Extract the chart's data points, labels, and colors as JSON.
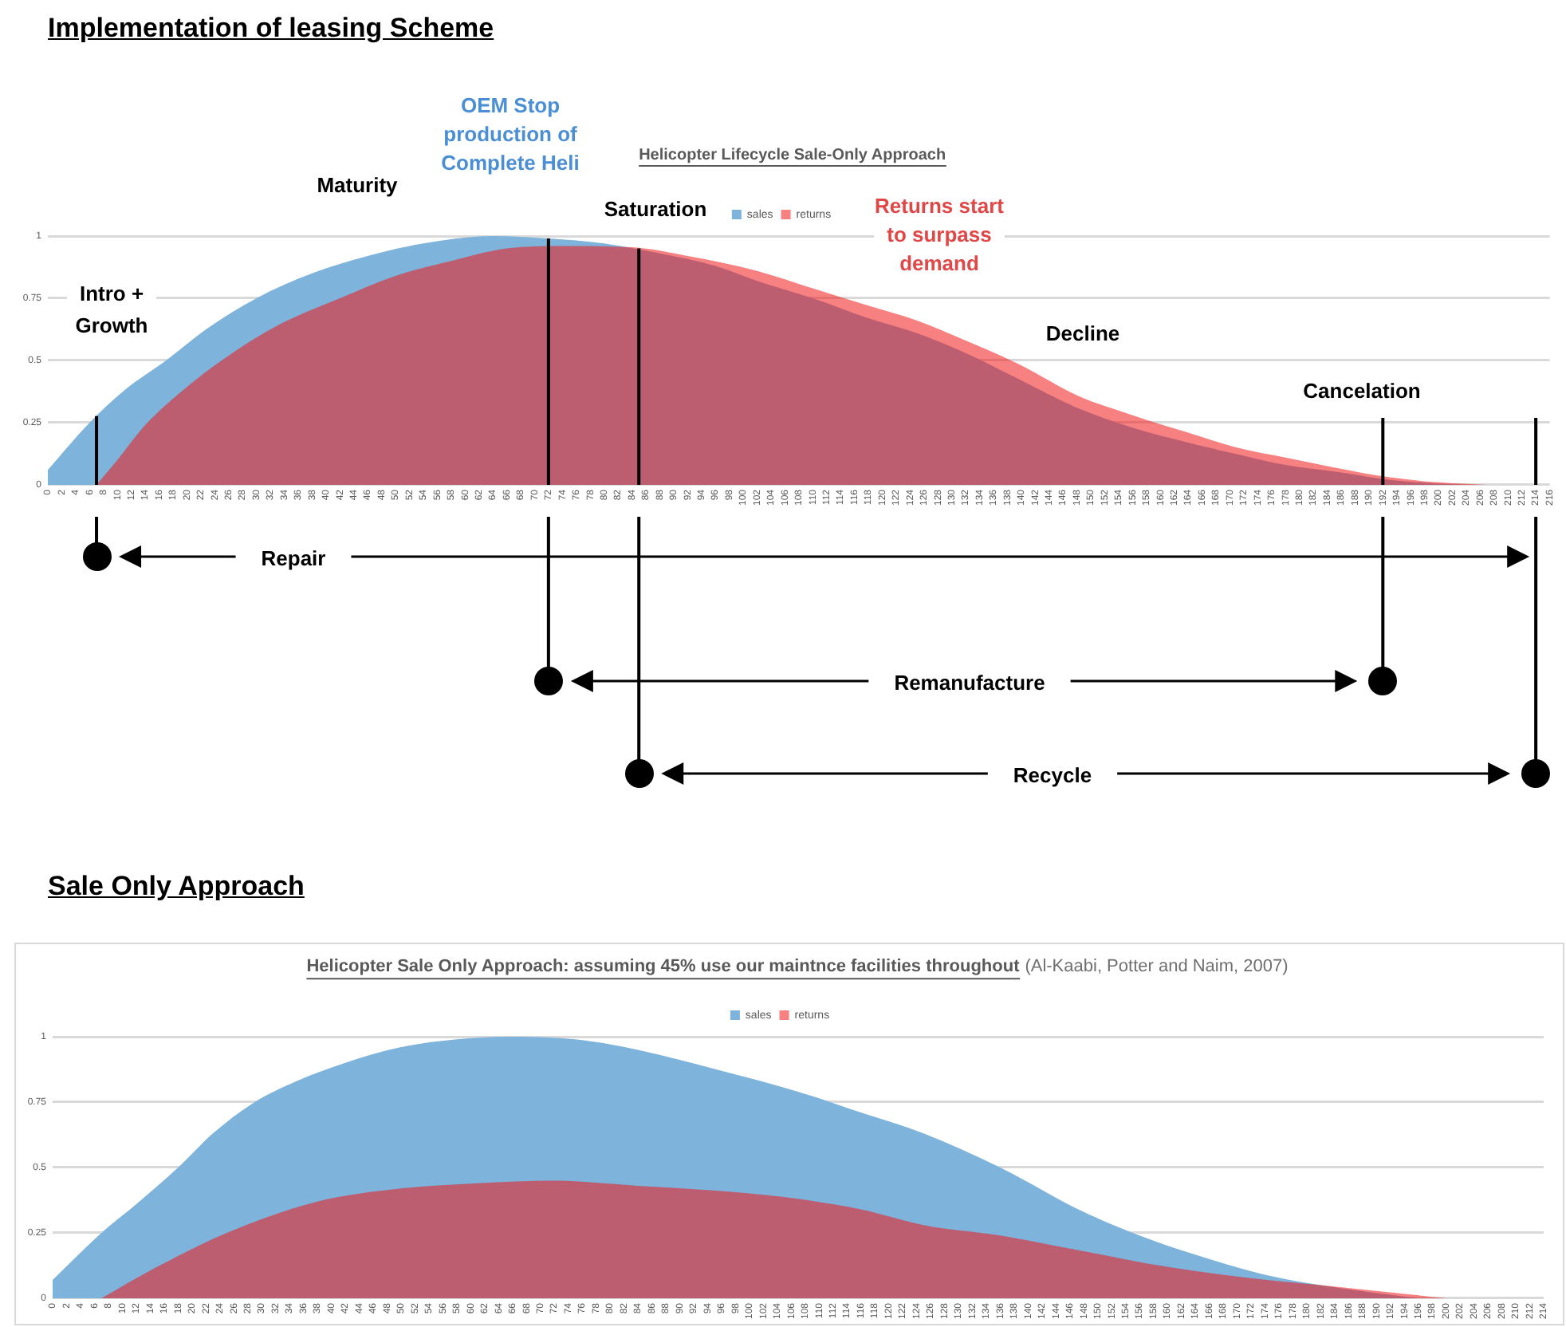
{
  "chart_data": [
    {
      "type": "area",
      "subtitle": "Implementation of leasing Scheme",
      "title": "Helicopter Lifecycle Sale-Only Approach",
      "xlim": [
        0,
        216
      ],
      "xticks": [
        0,
        2,
        4,
        6,
        8,
        10,
        12,
        14,
        16,
        18,
        20,
        22,
        24,
        26,
        28,
        30,
        32,
        34,
        36,
        38,
        40,
        42,
        44,
        46,
        48,
        50,
        52,
        54,
        56,
        58,
        60,
        62,
        64,
        66,
        68,
        70,
        72,
        74,
        76,
        78,
        80,
        82,
        84,
        86,
        88,
        90,
        92,
        94,
        96,
        98,
        100,
        102,
        104,
        106,
        108,
        110,
        112,
        114,
        116,
        118,
        120,
        122,
        124,
        126,
        128,
        130,
        132,
        134,
        136,
        138,
        140,
        142,
        144,
        146,
        148,
        150,
        152,
        154,
        156,
        158,
        160,
        162,
        164,
        166,
        168,
        170,
        172,
        174,
        176,
        178,
        180,
        182,
        184,
        186,
        188,
        190,
        192,
        194,
        196,
        198,
        200,
        202,
        204,
        206,
        208,
        210,
        212,
        214,
        216
      ],
      "ylim": [
        0,
        1
      ],
      "yticks": [
        0,
        0.25,
        0.5,
        0.75,
        1
      ],
      "grid": "y",
      "legend": "top",
      "series": [
        {
          "name": "sales",
          "color": "#7eb3dc",
          "x": [
            0,
            6,
            11,
            17,
            23,
            30,
            38,
            46,
            54,
            64,
            72,
            80,
            88,
            96,
            102,
            110,
            118,
            125,
            132,
            140,
            148,
            156,
            164,
            170,
            178,
            186,
            193,
            200,
            204
          ],
          "values": [
            0.06,
            0.25,
            0.38,
            0.5,
            0.63,
            0.75,
            0.85,
            0.92,
            0.97,
            1,
            0.99,
            0.97,
            0.93,
            0.88,
            0.82,
            0.75,
            0.67,
            0.61,
            0.53,
            0.42,
            0.31,
            0.23,
            0.17,
            0.13,
            0.08,
            0.05,
            0.02,
            0.005,
            0
          ]
        },
        {
          "name": "returns",
          "color": "#f01818",
          "x": [
            7,
            10,
            14,
            19,
            25,
            33,
            42,
            50,
            58,
            66,
            74,
            84,
            92,
            102,
            110,
            118,
            125,
            132,
            140,
            148,
            156,
            164,
            171,
            178,
            185,
            193,
            200,
            207
          ],
          "values": [
            0,
            0.1,
            0.24,
            0.37,
            0.5,
            0.64,
            0.75,
            0.84,
            0.9,
            0.95,
            0.96,
            0.955,
            0.92,
            0.86,
            0.79,
            0.72,
            0.66,
            0.58,
            0.48,
            0.36,
            0.28,
            0.21,
            0.15,
            0.11,
            0.07,
            0.03,
            0.01,
            0
          ]
        }
      ],
      "ref_lines": [
        {
          "axis": "x",
          "value": 7,
          "color": "#000000"
        },
        {
          "axis": "x",
          "value": 72,
          "color": "#000000"
        },
        {
          "axis": "x",
          "value": 85,
          "color": "#000000"
        },
        {
          "axis": "x",
          "value": 192,
          "color": "#000000"
        },
        {
          "axis": "x",
          "value": 214,
          "color": "#000000"
        }
      ],
      "annotations": [
        "Intro + Growth",
        "Maturity",
        "OEM Stop production of Complete Heli",
        "Saturation",
        "Returns start to surpass demand",
        "Decline",
        "Cancelation",
        "Repair",
        "Remanufacture",
        "Recycle"
      ]
    },
    {
      "type": "area",
      "subtitle": "Sale Only Approach",
      "title": "Helicopter Sale Only Approach: assuming 45% use our maintnce facilities throughout",
      "xlim": [
        0,
        214
      ],
      "xticks": [
        0,
        2,
        4,
        6,
        8,
        10,
        12,
        14,
        16,
        18,
        20,
        22,
        24,
        26,
        28,
        30,
        32,
        34,
        36,
        38,
        40,
        42,
        44,
        46,
        48,
        50,
        52,
        54,
        56,
        58,
        60,
        62,
        64,
        66,
        68,
        70,
        72,
        74,
        76,
        78,
        80,
        82,
        84,
        86,
        88,
        90,
        92,
        94,
        96,
        98,
        100,
        102,
        104,
        106,
        108,
        110,
        112,
        114,
        116,
        118,
        120,
        122,
        124,
        126,
        128,
        130,
        132,
        134,
        136,
        138,
        140,
        142,
        144,
        146,
        148,
        150,
        152,
        154,
        156,
        158,
        160,
        162,
        164,
        166,
        168,
        170,
        172,
        174,
        176,
        178,
        180,
        182,
        184,
        186,
        188,
        190,
        192,
        194,
        196,
        198,
        200,
        202,
        204,
        206,
        208,
        210,
        212,
        214
      ],
      "ylim": [
        0,
        1
      ],
      "yticks": [
        0,
        0.25,
        0.5,
        0.75,
        1
      ],
      "grid": "y",
      "legend": "top",
      "series": [
        {
          "name": "sales",
          "color": "#7eb3dc",
          "x": [
            0,
            7,
            12,
            18,
            23,
            29,
            35,
            42,
            50,
            58,
            65,
            75,
            84,
            96,
            107,
            116,
            125,
            136,
            148,
            158,
            166,
            174,
            182,
            190,
            196
          ],
          "values": [
            0.07,
            0.25,
            0.36,
            0.5,
            0.63,
            0.75,
            0.83,
            0.9,
            0.96,
            0.99,
            1,
            0.99,
            0.95,
            0.87,
            0.79,
            0.71,
            0.63,
            0.5,
            0.33,
            0.22,
            0.15,
            0.09,
            0.05,
            0.02,
            0
          ]
        },
        {
          "name": "returns",
          "color": "#f01818",
          "x": [
            7,
            15,
            25,
            38,
            50,
            61,
            72,
            84,
            96,
            107,
            116,
            125,
            136,
            148,
            160,
            171,
            182,
            193,
            200
          ],
          "values": [
            0,
            0.12,
            0.25,
            0.37,
            0.42,
            0.44,
            0.45,
            0.43,
            0.41,
            0.38,
            0.34,
            0.28,
            0.24,
            0.18,
            0.12,
            0.08,
            0.05,
            0.02,
            0
          ]
        }
      ],
      "annotations": [
        "(Al-Kaabi, Potter and Naim, 2007)"
      ]
    }
  ]
}
